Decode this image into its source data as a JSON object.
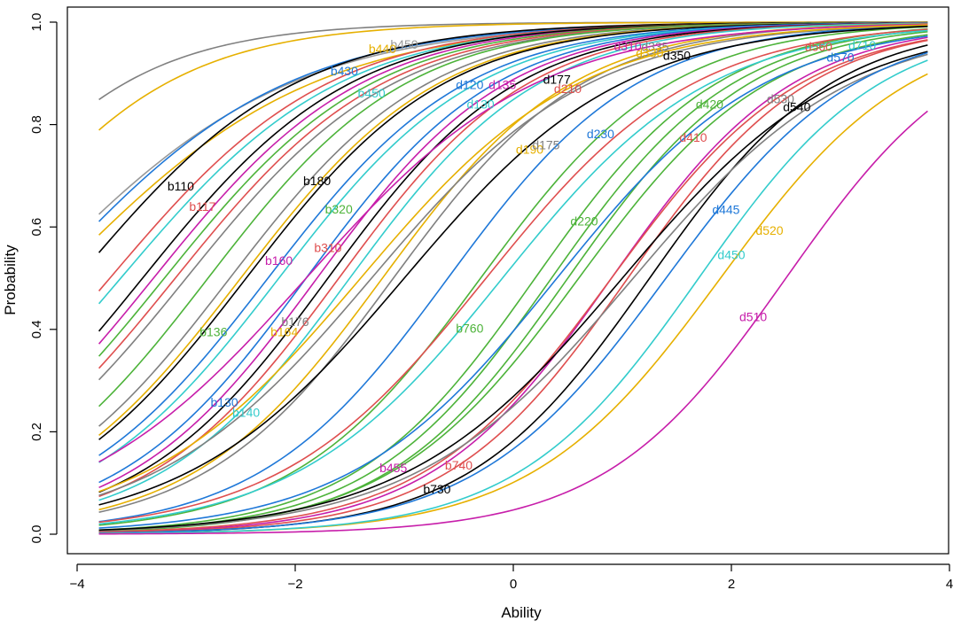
{
  "chart_data": {
    "type": "line",
    "title": "",
    "xlabel": "Ability",
    "ylabel": "Probability",
    "xlim": [
      -4,
      4
    ],
    "ylim": [
      0,
      1
    ],
    "x_range_plotted": [
      -3.8,
      3.8
    ],
    "x_ticks": [
      -4,
      -2,
      0,
      2,
      4
    ],
    "x_tick_labels": [
      "−4",
      "−2",
      "0",
      "2",
      "4"
    ],
    "y_ticks": [
      0.0,
      0.2,
      0.4,
      0.6,
      0.8,
      1.0
    ],
    "y_tick_labels": [
      "0.0",
      "0.2",
      "0.4",
      "0.6",
      "0.8",
      "1.0"
    ],
    "grid": false,
    "model": "logistic item characteristic curves, P = 1 / (1 + exp(-a*(theta - b)))",
    "series": [
      {
        "name": "extra1",
        "label": "",
        "color": "#808080",
        "a": 1.15,
        "b": -5.3,
        "label_at": null
      },
      {
        "name": "extra2",
        "label": "",
        "color": "#E6B000",
        "a": 1.1,
        "b": -5.0,
        "label_at": null
      },
      {
        "name": "b450",
        "label": "b450",
        "color": "#999999",
        "a": 0.85,
        "b": -4.4,
        "label_at": [
          -1.0,
          0.957
        ]
      },
      {
        "name": "b440",
        "label": "b440",
        "color": "#E6B000",
        "a": 0.85,
        "b": -4.2,
        "label_at": [
          -1.2,
          0.948
        ]
      },
      {
        "name": "b430",
        "label": "b430",
        "color": "#1F78D8",
        "a": 0.9,
        "b": -4.3,
        "label_at": [
          -1.55,
          0.905
        ]
      },
      {
        "name": "b110",
        "label": "b110",
        "color": "#000000",
        "a": 1.0,
        "b": -4.0,
        "label_at": [
          -3.05,
          0.68
        ]
      },
      {
        "name": "b117",
        "label": "b117",
        "color": "#DF4F4F",
        "a": 1.0,
        "b": -3.7,
        "label_at": [
          -2.85,
          0.64
        ]
      },
      {
        "name": "b450b",
        "label": "b450",
        "color": "#33CCCC",
        "a": 1.0,
        "b": -3.6,
        "label_at": [
          -1.3,
          0.862
        ]
      },
      {
        "name": "b160",
        "label": "b160",
        "color": "#C71EAA",
        "a": 1.05,
        "b": -3.3,
        "label_at": [
          -2.15,
          0.535
        ]
      },
      {
        "name": "b180",
        "label": "b180",
        "color": "#000000",
        "a": 1.05,
        "b": -3.4,
        "label_at": [
          -1.8,
          0.69
        ]
      },
      {
        "name": "b320",
        "label": "b320",
        "color": "#4DB33A",
        "a": 1.05,
        "b": -3.2,
        "label_at": [
          -1.6,
          0.635
        ]
      },
      {
        "name": "b310",
        "label": "b310",
        "color": "#DF4F4F",
        "a": 1.05,
        "b": -3.1,
        "label_at": [
          -1.7,
          0.56
        ]
      },
      {
        "name": "extra_gray",
        "label": "",
        "color": "#808080",
        "a": 1.05,
        "b": -3.0,
        "label_at": null
      },
      {
        "name": "b136",
        "label": "b136",
        "color": "#4DB33A",
        "a": 1.1,
        "b": -2.8,
        "label_at": [
          -2.75,
          0.395
        ]
      },
      {
        "name": "b176",
        "label": "b176",
        "color": "#808080",
        "a": 1.1,
        "b": -2.6,
        "label_at": [
          -2.0,
          0.415
        ]
      },
      {
        "name": "b164",
        "label": "b164",
        "color": "#E6B000",
        "a": 1.1,
        "b": -2.5,
        "label_at": [
          -2.1,
          0.395
        ]
      },
      {
        "name": "extra_black2",
        "label": "",
        "color": "#000000",
        "a": 1.1,
        "b": -2.45,
        "label_at": null
      },
      {
        "name": "b130",
        "label": "b130",
        "color": "#1F78D8",
        "a": 1.1,
        "b": -2.25,
        "label_at": [
          -2.65,
          0.258
        ]
      },
      {
        "name": "b140",
        "label": "b140",
        "color": "#33CCCC",
        "a": 1.1,
        "b": -2.15,
        "label_at": [
          -2.45,
          0.238
        ]
      },
      {
        "name": "d120",
        "label": "d120",
        "color": "#1F78D8",
        "a": 1.15,
        "b": -1.9,
        "label_at": [
          -0.4,
          0.878
        ]
      },
      {
        "name": "d135",
        "label": "d135",
        "color": "#C71EAA",
        "a": 1.15,
        "b": -1.8,
        "label_at": [
          -0.1,
          0.878
        ]
      },
      {
        "name": "d177",
        "label": "d177",
        "color": "#000000",
        "a": 1.15,
        "b": -1.7,
        "label_at": [
          0.4,
          0.888
        ]
      },
      {
        "name": "d210",
        "label": "d210",
        "color": "#DF4F4F",
        "a": 1.15,
        "b": -1.6,
        "label_at": [
          0.5,
          0.87
        ]
      },
      {
        "name": "d130",
        "label": "d130",
        "color": "#33CCCC",
        "a": 1.15,
        "b": -1.5,
        "label_at": [
          -0.3,
          0.84
        ]
      },
      {
        "name": "d190",
        "label": "d190",
        "color": "#E6B000",
        "a": 1.15,
        "b": -1.2,
        "label_at": [
          0.15,
          0.752
        ]
      },
      {
        "name": "d175",
        "label": "d175",
        "color": "#808080",
        "a": 1.15,
        "b": -1.1,
        "label_at": [
          0.3,
          0.76
        ]
      },
      {
        "name": "d230",
        "label": "d230",
        "color": "#1F78D8",
        "a": 1.15,
        "b": -0.6,
        "label_at": [
          0.8,
          0.782
        ]
      },
      {
        "name": "b760",
        "label": "b760",
        "color": "#4DB33A",
        "a": 1.15,
        "b": -0.3,
        "label_at": [
          -0.4,
          0.402
        ]
      },
      {
        "name": "d220",
        "label": "d220",
        "color": "#4DB33A",
        "a": 1.2,
        "b": 0.2,
        "label_at": [
          0.65,
          0.612
        ]
      },
      {
        "name": "extra_green1",
        "label": "",
        "color": "#4DB33A",
        "a": 1.2,
        "b": 0.35,
        "label_at": null
      },
      {
        "name": "extra_green2",
        "label": "",
        "color": "#4DB33A",
        "a": 1.2,
        "b": 0.5,
        "label_at": null
      },
      {
        "name": "d310",
        "label": "d310",
        "color": "#C71EAA",
        "a": 0.95,
        "b": -1.9,
        "label_at": [
          1.05,
          0.953
        ]
      },
      {
        "name": "d335",
        "label": "d335",
        "color": "#808080",
        "a": 1.0,
        "b": -1.3,
        "label_at": [
          1.3,
          0.952
        ]
      },
      {
        "name": "d330",
        "label": "d330",
        "color": "#E6B000",
        "a": 1.0,
        "b": -1.4,
        "label_at": [
          1.25,
          0.94
        ]
      },
      {
        "name": "d350",
        "label": "d350",
        "color": "#000000",
        "a": 1.0,
        "b": -1.0,
        "label_at": [
          1.5,
          0.935
        ]
      },
      {
        "name": "b455",
        "label": "b455",
        "color": "#C71EAA",
        "a": 1.2,
        "b": 0.9,
        "label_at": [
          -1.1,
          0.13
        ]
      },
      {
        "name": "b740",
        "label": "b740",
        "color": "#DF4F4F",
        "a": 1.2,
        "b": 1.05,
        "label_at": [
          -0.5,
          0.135
        ]
      },
      {
        "name": "b730",
        "label": "b730",
        "color": "#000000",
        "a": 1.2,
        "b": 1.25,
        "label_at": [
          -0.7,
          0.088
        ]
      },
      {
        "name": "d420",
        "label": "d420",
        "color": "#4DB33A",
        "a": 1.15,
        "b": 0.6,
        "label_at": [
          1.8,
          0.84
        ]
      },
      {
        "name": "d410",
        "label": "d410",
        "color": "#DF4F4F",
        "a": 1.15,
        "b": 0.9,
        "label_at": [
          1.65,
          0.775
        ]
      },
      {
        "name": "d530",
        "label": "d530",
        "color": "#808080",
        "a": 1.0,
        "b": 1.1,
        "label_at": [
          2.45,
          0.85
        ]
      },
      {
        "name": "d540",
        "label": "d540",
        "color": "#000000",
        "a": 1.0,
        "b": 1.0,
        "label_at": [
          2.6,
          0.835
        ]
      },
      {
        "name": "d560",
        "label": "d560",
        "color": "#DF4F4F",
        "a": 1.05,
        "b": -0.25,
        "label_at": [
          2.8,
          0.952
        ]
      },
      {
        "name": "d570",
        "label": "d570",
        "color": "#1F78D8",
        "a": 1.05,
        "b": 0.4,
        "label_at": [
          3.0,
          0.932
        ]
      },
      {
        "name": "d710",
        "label": "d710",
        "color": "#33CCCC",
        "a": 1.05,
        "b": -0.1,
        "label_at": [
          3.2,
          0.955
        ]
      },
      {
        "name": "d445",
        "label": "d445",
        "color": "#1F78D8",
        "a": 1.15,
        "b": 1.4,
        "label_at": [
          1.95,
          0.634
        ]
      },
      {
        "name": "d520",
        "label": "d520",
        "color": "#E6B000",
        "a": 1.15,
        "b": 1.9,
        "label_at": [
          2.35,
          0.593
        ]
      },
      {
        "name": "d450",
        "label": "d450",
        "color": "#33CCCC",
        "a": 1.2,
        "b": 1.7,
        "label_at": [
          2.0,
          0.546
        ]
      },
      {
        "name": "d510",
        "label": "d510",
        "color": "#C71EAA",
        "a": 1.2,
        "b": 2.5,
        "label_at": [
          2.2,
          0.425
        ]
      }
    ]
  }
}
